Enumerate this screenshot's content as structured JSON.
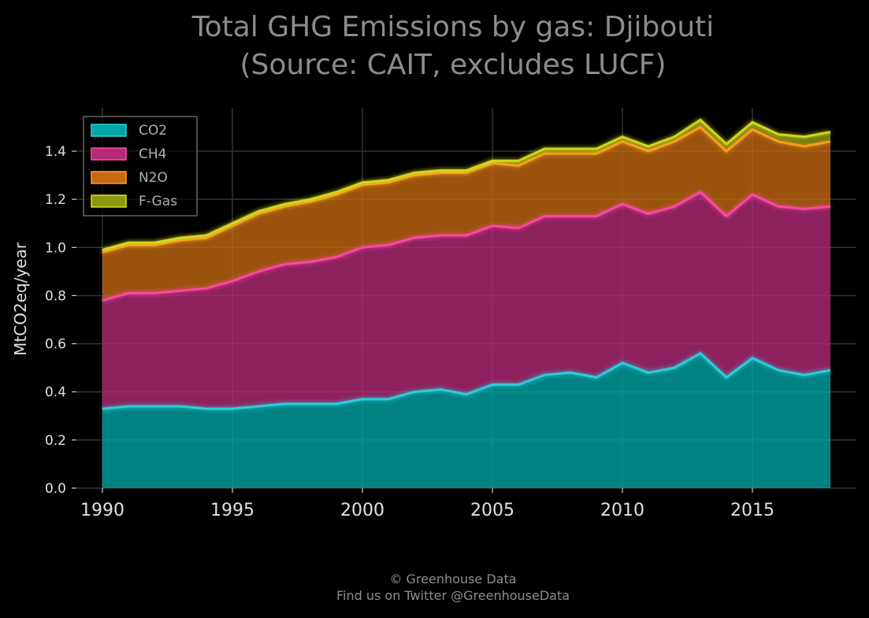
{
  "chart_data": {
    "type": "area",
    "stacked": true,
    "title": [
      "Total GHG Emissions by gas: Djibouti",
      "(Source: CAIT, excludes LUCF)"
    ],
    "xlabel": "",
    "ylabel": "MtCO2eq/year",
    "x": [
      1990,
      1991,
      1992,
      1993,
      1994,
      1995,
      1996,
      1997,
      1998,
      1999,
      2000,
      2001,
      2002,
      2003,
      2004,
      2005,
      2006,
      2007,
      2008,
      2009,
      2010,
      2011,
      2012,
      2013,
      2014,
      2015,
      2016,
      2017,
      2018
    ],
    "xlim": [
      1989,
      2019
    ],
    "ylim": [
      0,
      1.58
    ],
    "xticks": [
      1990,
      1995,
      2000,
      2005,
      2010,
      2015
    ],
    "xtick_labels": [
      "1990",
      "1995",
      "2000",
      "2005",
      "2010",
      "2015"
    ],
    "yticks": [
      0.0,
      0.2,
      0.4,
      0.6,
      0.8,
      1.0,
      1.2,
      1.4
    ],
    "ytick_labels": [
      "0.0",
      "0.2",
      "0.4",
      "0.6",
      "0.8",
      "1.0",
      "1.2",
      "1.4"
    ],
    "grid": true,
    "legend_position": "top-left",
    "series": [
      {
        "name": "CO2",
        "fill": "#00a6a6",
        "line": "#2ad4e0",
        "values": [
          0.33,
          0.34,
          0.34,
          0.34,
          0.33,
          0.33,
          0.34,
          0.35,
          0.35,
          0.35,
          0.37,
          0.37,
          0.4,
          0.41,
          0.39,
          0.43,
          0.43,
          0.47,
          0.48,
          0.46,
          0.52,
          0.48,
          0.5,
          0.56,
          0.46,
          0.54,
          0.49,
          0.47,
          0.49
        ]
      },
      {
        "name": "CH4",
        "fill": "#b52a77",
        "line": "#ff4aa8",
        "values": [
          0.45,
          0.47,
          0.47,
          0.48,
          0.5,
          0.53,
          0.56,
          0.58,
          0.59,
          0.61,
          0.63,
          0.64,
          0.64,
          0.64,
          0.66,
          0.66,
          0.65,
          0.66,
          0.65,
          0.67,
          0.66,
          0.66,
          0.67,
          0.67,
          0.67,
          0.68,
          0.68,
          0.69,
          0.68
        ]
      },
      {
        "name": "N2O",
        "fill": "#c76a12",
        "line": "#ffa020",
        "values": [
          0.2,
          0.2,
          0.2,
          0.21,
          0.21,
          0.23,
          0.24,
          0.24,
          0.25,
          0.26,
          0.26,
          0.26,
          0.26,
          0.26,
          0.26,
          0.26,
          0.26,
          0.26,
          0.26,
          0.26,
          0.26,
          0.26,
          0.27,
          0.27,
          0.27,
          0.27,
          0.27,
          0.26,
          0.27
        ]
      },
      {
        "name": "F-Gas",
        "fill": "#8a9a10",
        "line": "#d7e020",
        "values": [
          0.01,
          0.01,
          0.01,
          0.01,
          0.01,
          0.01,
          0.01,
          0.01,
          0.01,
          0.01,
          0.01,
          0.01,
          0.01,
          0.01,
          0.01,
          0.01,
          0.02,
          0.02,
          0.02,
          0.02,
          0.02,
          0.02,
          0.02,
          0.03,
          0.03,
          0.03,
          0.03,
          0.04,
          0.04
        ]
      }
    ]
  },
  "footer": {
    "line1": "© Greenhouse Data",
    "line2": "Find us on Twitter @GreenhouseData"
  }
}
